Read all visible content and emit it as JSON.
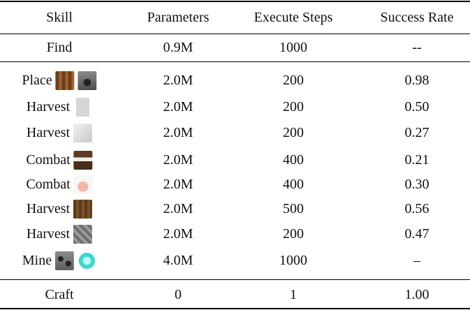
{
  "table": {
    "header": [
      "Skill",
      "Parameters",
      "Execute Steps",
      "Success Rate"
    ],
    "rows": [
      [
        "Find",
        "0.9M",
        "1000",
        "--"
      ],
      [
        "Place",
        "2.0M",
        "200",
        "0.98"
      ],
      [
        "Harvest",
        "2.0M",
        "200",
        "0.50"
      ],
      [
        "Harvest",
        "2.0M",
        "200",
        "0.27"
      ],
      [
        "Combat",
        "2.0M",
        "400",
        "0.21"
      ],
      [
        "Combat",
        "2.0M",
        "400",
        "0.30"
      ],
      [
        "Harvest",
        "2.0M",
        "500",
        "0.56"
      ],
      [
        "Harvest",
        "2.0M",
        "200",
        "0.47"
      ],
      [
        "Mine",
        "4.0M",
        "1000",
        "–"
      ],
      [
        "Craft",
        "0",
        "1",
        "1.00"
      ]
    ]
  }
}
